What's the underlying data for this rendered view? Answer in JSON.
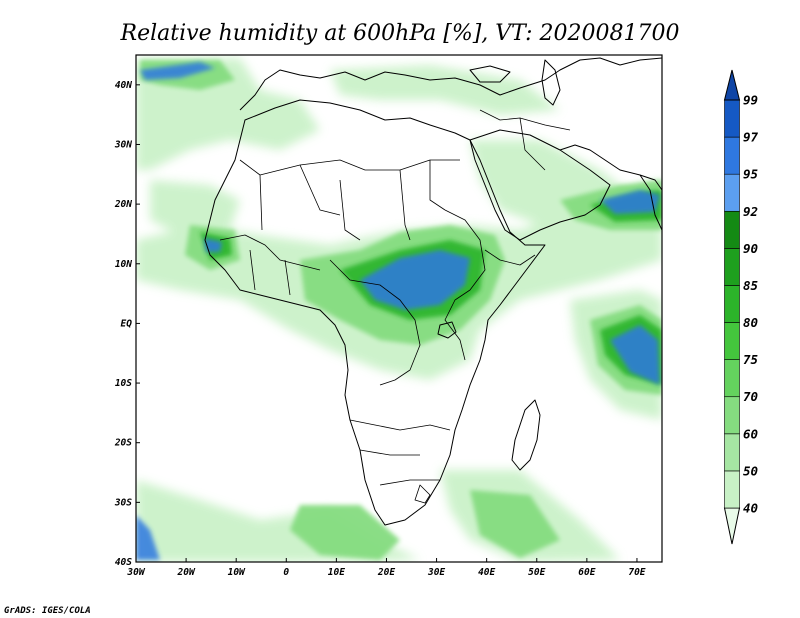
{
  "title": "Relative humidity at 600hPa [%], VT: 2020081700",
  "credit": "GrADS: IGES/COLA",
  "map": {
    "lon_range": [
      -30,
      75
    ],
    "lat_range": [
      -40,
      45
    ],
    "lon_ticks": [
      {
        "value": -30,
        "label": "30W"
      },
      {
        "value": -20,
        "label": "20W"
      },
      {
        "value": -10,
        "label": "10W"
      },
      {
        "value": 0,
        "label": "0"
      },
      {
        "value": 10,
        "label": "10E"
      },
      {
        "value": 20,
        "label": "20E"
      },
      {
        "value": 30,
        "label": "30E"
      },
      {
        "value": 40,
        "label": "40E"
      },
      {
        "value": 50,
        "label": "50E"
      },
      {
        "value": 60,
        "label": "60E"
      },
      {
        "value": 70,
        "label": "70E"
      }
    ],
    "lat_ticks": [
      {
        "value": 40,
        "label": "40N"
      },
      {
        "value": 30,
        "label": "30N"
      },
      {
        "value": 20,
        "label": "20N"
      },
      {
        "value": 10,
        "label": "10N"
      },
      {
        "value": 0,
        "label": "EQ"
      },
      {
        "value": -10,
        "label": "10S"
      },
      {
        "value": -20,
        "label": "20S"
      },
      {
        "value": -30,
        "label": "30S"
      },
      {
        "value": -40,
        "label": "40S"
      }
    ]
  },
  "colorbar": {
    "levels": [
      "40",
      "50",
      "60",
      "70",
      "75",
      "80",
      "85",
      "90",
      "92",
      "95",
      "97",
      "99"
    ],
    "colors": [
      "#e9fbe9",
      "#c8f1c6",
      "#a6e6a3",
      "#85dc80",
      "#64d25e",
      "#44c63d",
      "#2cb42a",
      "#1ea01e",
      "#148a14",
      "#5c9ff0",
      "#2f78e0",
      "#1559c4",
      "#0f45a6"
    ]
  },
  "colors": {
    "low": "#e9fbe9",
    "mid": "#85dc80",
    "high": "#2cb42a",
    "sat": "#2f78e0"
  }
}
